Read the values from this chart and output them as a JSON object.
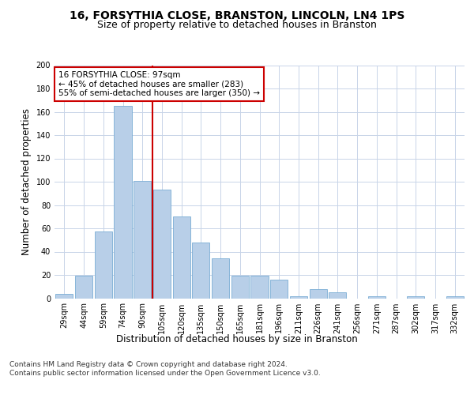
{
  "title": "16, FORSYTHIA CLOSE, BRANSTON, LINCOLN, LN4 1PS",
  "subtitle": "Size of property relative to detached houses in Branston",
  "xlabel": "Distribution of detached houses by size in Branston",
  "ylabel": "Number of detached properties",
  "categories": [
    "29sqm",
    "44sqm",
    "59sqm",
    "74sqm",
    "90sqm",
    "105sqm",
    "120sqm",
    "135sqm",
    "150sqm",
    "165sqm",
    "181sqm",
    "196sqm",
    "211sqm",
    "226sqm",
    "241sqm",
    "256sqm",
    "271sqm",
    "287sqm",
    "302sqm",
    "317sqm",
    "332sqm"
  ],
  "values": [
    4,
    19,
    57,
    165,
    101,
    93,
    70,
    48,
    34,
    19,
    19,
    16,
    2,
    8,
    5,
    0,
    2,
    0,
    2,
    0,
    2
  ],
  "bar_color": "#b8cfe8",
  "bar_edge_color": "#7aadd4",
  "vline_x": 4.5,
  "vline_color": "#cc0000",
  "annotation_text": "16 FORSYTHIA CLOSE: 97sqm\n← 45% of detached houses are smaller (283)\n55% of semi-detached houses are larger (350) →",
  "annotation_box_color": "#ffffff",
  "annotation_box_edge": "#cc0000",
  "ylim": [
    0,
    200
  ],
  "yticks": [
    0,
    20,
    40,
    60,
    80,
    100,
    120,
    140,
    160,
    180,
    200
  ],
  "background_color": "#ffffff",
  "grid_color": "#c8d4e8",
  "footer_text": "Contains HM Land Registry data © Crown copyright and database right 2024.\nContains public sector information licensed under the Open Government Licence v3.0.",
  "title_fontsize": 10,
  "subtitle_fontsize": 9,
  "xlabel_fontsize": 8.5,
  "ylabel_fontsize": 8.5,
  "tick_fontsize": 7,
  "annotation_fontsize": 7.5,
  "footer_fontsize": 6.5
}
